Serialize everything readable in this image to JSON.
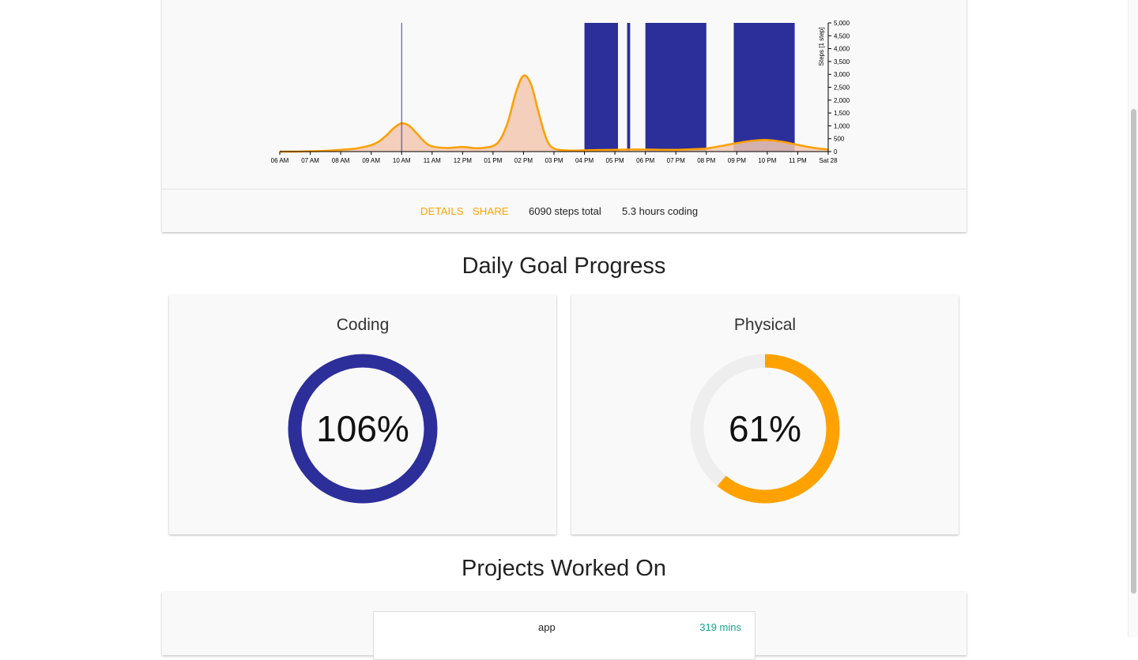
{
  "colors": {
    "accent": "#ffa200",
    "bar": "#2c2e9a",
    "area_fill": "#f2c8b2",
    "line": "#ff9f00",
    "teal": "#13a58d"
  },
  "chart": {
    "footer": {
      "details_label": "DETAILS",
      "share_label": "SHARE",
      "steps_total": "6090 steps total",
      "hours_coding": "5.3 hours coding"
    }
  },
  "chart_data": {
    "type": "area",
    "x_ticks": [
      "06 AM",
      "07 AM",
      "08 AM",
      "09 AM",
      "10 AM",
      "11 AM",
      "12 PM",
      "01 PM",
      "02 PM",
      "03 PM",
      "04 PM",
      "05 PM",
      "06 PM",
      "07 PM",
      "08 PM",
      "09 PM",
      "10 PM",
      "11 PM",
      "Sat 28"
    ],
    "y_ticks": [
      0,
      500,
      1000,
      1500,
      2000,
      2500,
      3000,
      3500,
      4000,
      4500,
      5000
    ],
    "y_tick_labels": [
      "0",
      "500",
      "1,000",
      "1,500",
      "2,000",
      "2,500",
      "3,000",
      "3,500",
      "4,000",
      "4,500",
      "5,000"
    ],
    "ylabel": "Steps [1 step]",
    "ylim": [
      0,
      5000
    ],
    "xlim_hours": [
      6,
      24
    ],
    "coding_intervals_hours": [
      [
        16.0,
        17.1
      ],
      [
        17.4,
        17.5
      ],
      [
        18.0,
        20.0
      ],
      [
        20.9,
        22.9
      ]
    ],
    "marker_hour": 10.0,
    "steps_series": {
      "name": "",
      "x_hours": [
        6,
        6.5,
        7,
        7.5,
        8,
        8.5,
        9,
        9.25,
        9.5,
        9.75,
        10,
        10.25,
        10.5,
        10.75,
        11,
        11.5,
        12,
        12.5,
        13,
        13.25,
        13.5,
        13.75,
        14,
        14.25,
        14.5,
        14.75,
        15,
        15.5,
        16,
        16.5,
        17,
        17.5,
        18,
        18.5,
        19,
        19.5,
        20,
        20.5,
        21,
        21.5,
        22,
        22.5,
        23,
        23.5,
        24
      ],
      "values": [
        0,
        0,
        10,
        30,
        70,
        120,
        250,
        390,
        630,
        920,
        1100,
        1000,
        700,
        380,
        200,
        140,
        180,
        130,
        220,
        500,
        1200,
        2300,
        2950,
        2600,
        1500,
        500,
        120,
        40,
        50,
        60,
        70,
        80,
        80,
        70,
        70,
        90,
        120,
        220,
        330,
        420,
        450,
        380,
        260,
        150,
        80
      ]
    }
  },
  "goals": {
    "title": "Daily Goal Progress",
    "coding": {
      "label": "Coding",
      "percent_text": "106%",
      "fraction": 1.0
    },
    "physical": {
      "label": "Physical",
      "percent_text": "61%",
      "fraction": 0.61
    }
  },
  "projects": {
    "title": "Projects Worked On",
    "items": [
      {
        "name": "app",
        "mins": "319 mins"
      }
    ]
  }
}
